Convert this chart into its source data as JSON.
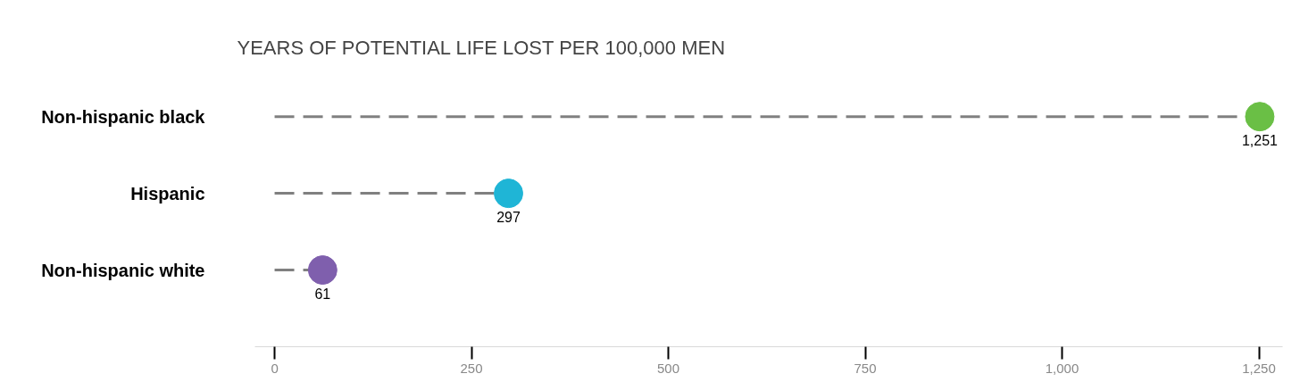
{
  "chart_data": {
    "type": "lollipop",
    "title": "YEARS OF POTENTIAL LIFE LOST PER 100,000 MEN",
    "categories": [
      "Non-hispanic black",
      "Hispanic",
      "Non-hispanic white"
    ],
    "values": [
      1251,
      297,
      61
    ],
    "colors": [
      "#6abf45",
      "#1fb5d6",
      "#7f5fad"
    ],
    "value_labels": [
      "1,251",
      "297",
      "61"
    ],
    "orientation": "horizontal",
    "xlim": [
      -25,
      1280
    ],
    "xticks": [
      0,
      250,
      500,
      750,
      {
        "value": 1000,
        "label": "1,000"
      },
      {
        "value": 1250,
        "label": "1,250"
      }
    ],
    "marker": "circle",
    "line_style": "dashed",
    "grid": false
  }
}
